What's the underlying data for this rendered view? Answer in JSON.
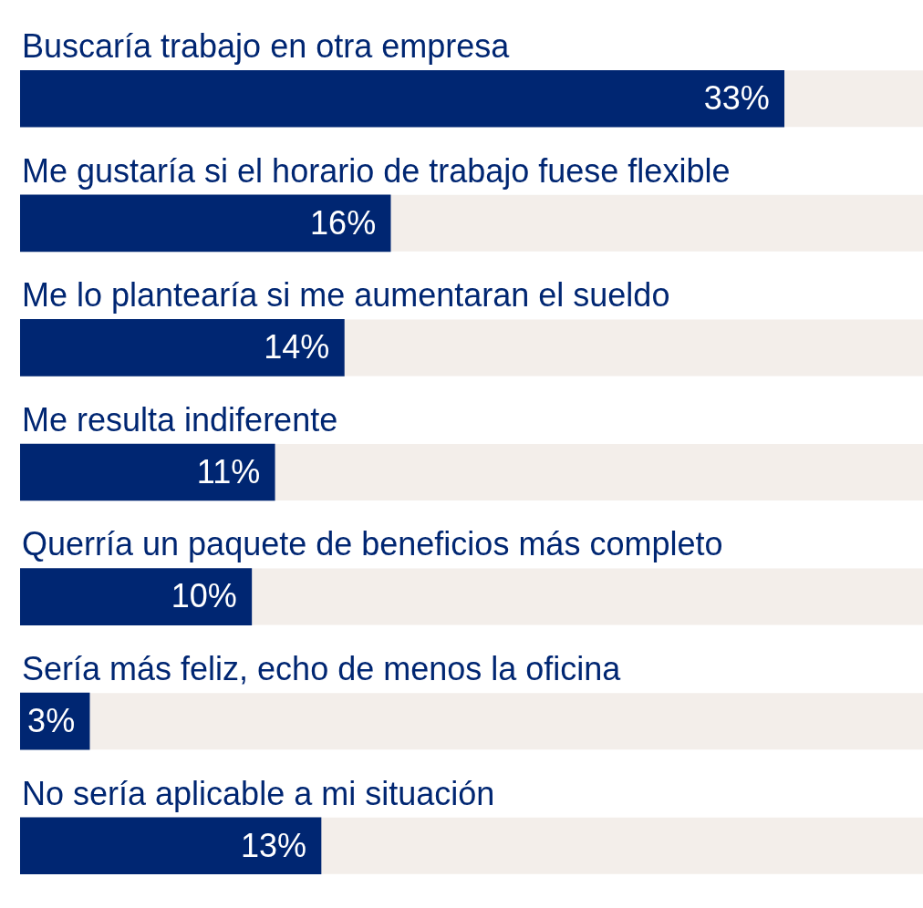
{
  "chart_data": {
    "type": "bar",
    "orientation": "horizontal",
    "categories": [
      "Buscaría trabajo en otra empresa",
      "Me gustaría si el horario de trabajo fuese flexible",
      "Me lo plantearía si me aumentaran el sueldo",
      "Me resulta indiferente",
      "Querría un paquete de beneficios más completo",
      "Sería más feliz, echo de menos la oficina",
      "No sería aplicable a mi situación"
    ],
    "values": [
      33,
      16,
      14,
      11,
      10,
      3,
      13
    ],
    "value_labels": [
      "33%",
      "16%",
      "14%",
      "11%",
      "10%",
      "3%",
      "13%"
    ],
    "color": "#002672",
    "xlim": [
      0,
      39
    ],
    "tick_labels": false,
    "legend": false
  }
}
